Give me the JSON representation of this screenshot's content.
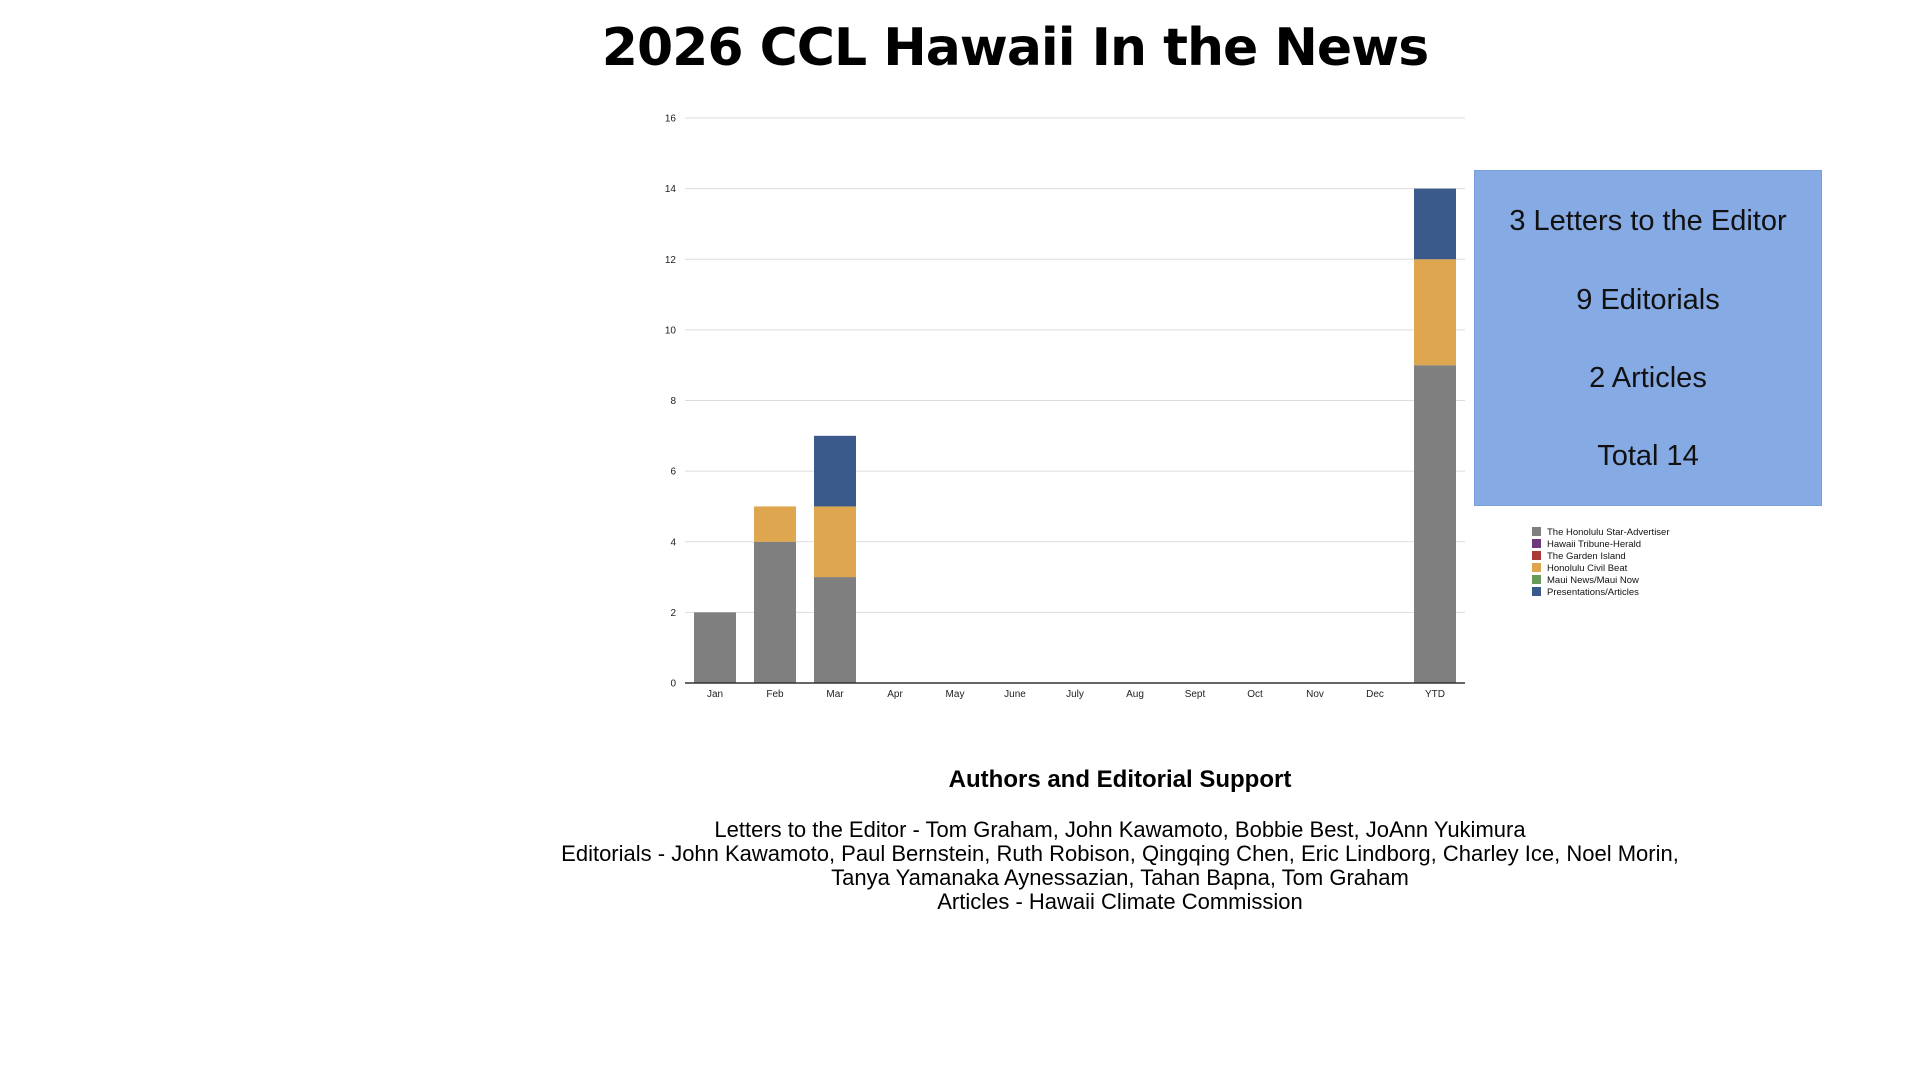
{
  "title": "2026 CCL Hawaii In the News",
  "colors": {
    "honolulu_star_advertiser": "#7f7f7f",
    "hawaii_tribune_herald": "#6b3a7a",
    "garden_island": "#a83a3a",
    "honolulu_civil_beat": "#dfa650",
    "maui_news": "#6a9a5a",
    "presentations_articles": "#3a5a8c",
    "summary_box": "#86aae4"
  },
  "chart_data": {
    "type": "bar",
    "stacked": true,
    "title": "2026 CCL Hawaii In the News",
    "xlabel": "",
    "ylabel": "",
    "ylim": [
      0,
      16
    ],
    "yticks": [
      0,
      2,
      4,
      6,
      8,
      10,
      12,
      14,
      16
    ],
    "grid": true,
    "legend_position": "right",
    "categories": [
      "Jan",
      "Feb",
      "Mar",
      "Apr",
      "May",
      "June",
      "July",
      "Aug",
      "Sept",
      "Oct",
      "Nov",
      "Dec",
      "YTD"
    ],
    "series": [
      {
        "name": "The Honolulu Star-Advertiser",
        "color_key": "honolulu_star_advertiser",
        "values": [
          2,
          4,
          3,
          0,
          0,
          0,
          0,
          0,
          0,
          0,
          0,
          0,
          9
        ]
      },
      {
        "name": "Hawaii Tribune-Herald",
        "color_key": "hawaii_tribune_herald",
        "values": [
          0,
          0,
          0,
          0,
          0,
          0,
          0,
          0,
          0,
          0,
          0,
          0,
          0
        ]
      },
      {
        "name": "The Garden Island",
        "color_key": "garden_island",
        "values": [
          0,
          0,
          0,
          0,
          0,
          0,
          0,
          0,
          0,
          0,
          0,
          0,
          0
        ]
      },
      {
        "name": "Honolulu Civil Beat",
        "color_key": "honolulu_civil_beat",
        "values": [
          0,
          1,
          2,
          0,
          0,
          0,
          0,
          0,
          0,
          0,
          0,
          0,
          3
        ]
      },
      {
        "name": "Maui News/Maui Now",
        "color_key": "maui_news",
        "values": [
          0,
          0,
          0,
          0,
          0,
          0,
          0,
          0,
          0,
          0,
          0,
          0,
          0
        ]
      },
      {
        "name": "Presentations/Articles",
        "color_key": "presentations_articles",
        "values": [
          0,
          0,
          2,
          0,
          0,
          0,
          0,
          0,
          0,
          0,
          0,
          0,
          2
        ]
      }
    ]
  },
  "summary": {
    "letters": "3 Letters to the Editor",
    "editorials": "9 Editorials",
    "articles": "2 Articles",
    "total": "Total 14"
  },
  "authors": {
    "heading": "Authors and Editorial Support",
    "letters_line": "Letters to the Editor - Tom Graham, John Kawamoto, Bobbie Best, JoAnn Yukimura",
    "editorials_line_1": "Editorials -  John Kawamoto, Paul Bernstein, Ruth Robison, Qingqing Chen, Eric Lindborg, Charley Ice, Noel Morin,",
    "editorials_line_2": "Tanya Yamanaka Aynessazian, Tahan Bapna, Tom Graham",
    "articles_line": "Articles - Hawaii Climate Commission"
  }
}
